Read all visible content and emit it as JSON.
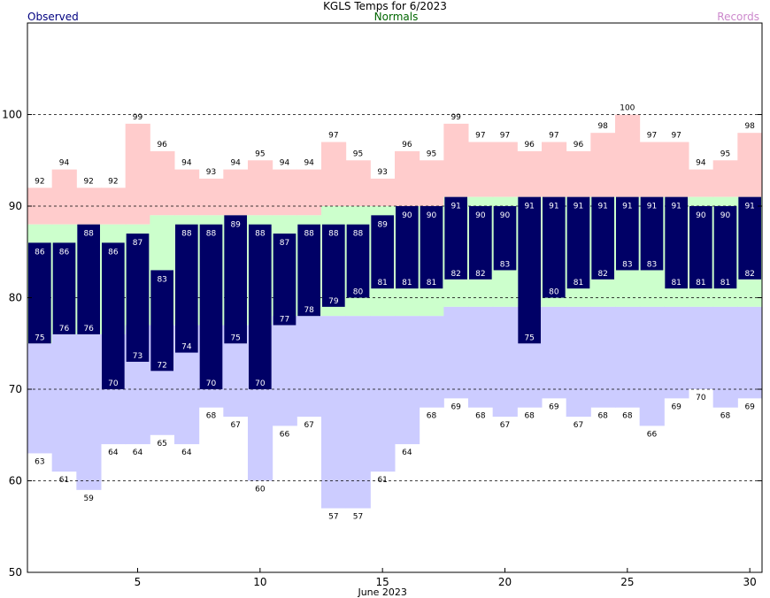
{
  "chart_data": {
    "type": "bar",
    "title": "KGLS Temps for 6/2023",
    "xlabel": "June 2023",
    "ylabel": "",
    "ylim": [
      50,
      110
    ],
    "yticks": [
      50,
      60,
      70,
      80,
      90,
      100
    ],
    "xticks": [
      5,
      10,
      15,
      20,
      25,
      30
    ],
    "grid_lines_dashed": [
      60,
      70,
      80,
      90,
      100
    ],
    "legend": {
      "observed": "Observed",
      "normals": "Normals",
      "records": "Records"
    },
    "colors": {
      "observed": "#000066",
      "normals_band": "#ccffcc",
      "record_high_band": "#ffcccc",
      "record_low_band": "#ccccff",
      "observed_label": "#000080",
      "normals_label": "#006600",
      "records_label": "#cc88cc"
    },
    "days": [
      1,
      2,
      3,
      4,
      5,
      6,
      7,
      8,
      9,
      10,
      11,
      12,
      13,
      14,
      15,
      16,
      17,
      18,
      19,
      20,
      21,
      22,
      23,
      24,
      25,
      26,
      27,
      28,
      29,
      30
    ],
    "series": [
      {
        "name": "Observed",
        "key": "obs_high",
        "values": [
          86,
          86,
          88,
          86,
          87,
          83,
          88,
          88,
          89,
          88,
          87,
          88,
          88,
          88,
          89,
          90,
          90,
          91,
          90,
          90,
          91,
          91,
          91,
          91,
          91,
          91,
          91,
          90,
          90,
          91
        ]
      },
      {
        "name": "Observed",
        "key": "obs_low",
        "values": [
          75,
          76,
          76,
          70,
          73,
          72,
          74,
          70,
          75,
          70,
          77,
          78,
          79,
          80,
          81,
          81,
          81,
          82,
          82,
          83,
          75,
          80,
          81,
          82,
          83,
          83,
          81,
          81,
          81,
          82
        ]
      },
      {
        "name": "Records",
        "key": "record_high",
        "values": [
          92,
          94,
          92,
          92,
          99,
          96,
          94,
          93,
          94,
          95,
          94,
          94,
          97,
          95,
          93,
          96,
          95,
          99,
          97,
          97,
          96,
          97,
          96,
          98,
          100,
          97,
          97,
          94,
          95,
          98
        ]
      },
      {
        "name": "Records",
        "key": "record_low",
        "values": [
          63,
          61,
          59,
          64,
          64,
          65,
          64,
          68,
          67,
          60,
          66,
          67,
          57,
          57,
          61,
          64,
          68,
          69,
          68,
          67,
          68,
          69,
          67,
          68,
          68,
          66,
          69,
          70,
          68,
          69
        ]
      },
      {
        "name": "Normals",
        "key": "normal_high",
        "values": [
          88,
          88,
          88,
          88,
          88,
          89,
          89,
          89,
          89,
          89,
          89,
          89,
          90,
          90,
          90,
          90,
          90,
          91,
          91,
          91,
          91,
          91,
          91,
          91,
          91,
          91,
          91,
          91,
          91,
          91
        ]
      },
      {
        "name": "Normals",
        "key": "normal_low",
        "values": [
          75,
          76,
          76,
          76,
          77,
          77,
          77,
          77,
          77,
          77,
          78,
          78,
          78,
          78,
          78,
          78,
          78,
          79,
          79,
          79,
          79,
          79,
          79,
          79,
          79,
          79,
          79,
          79,
          79,
          79
        ]
      }
    ]
  }
}
